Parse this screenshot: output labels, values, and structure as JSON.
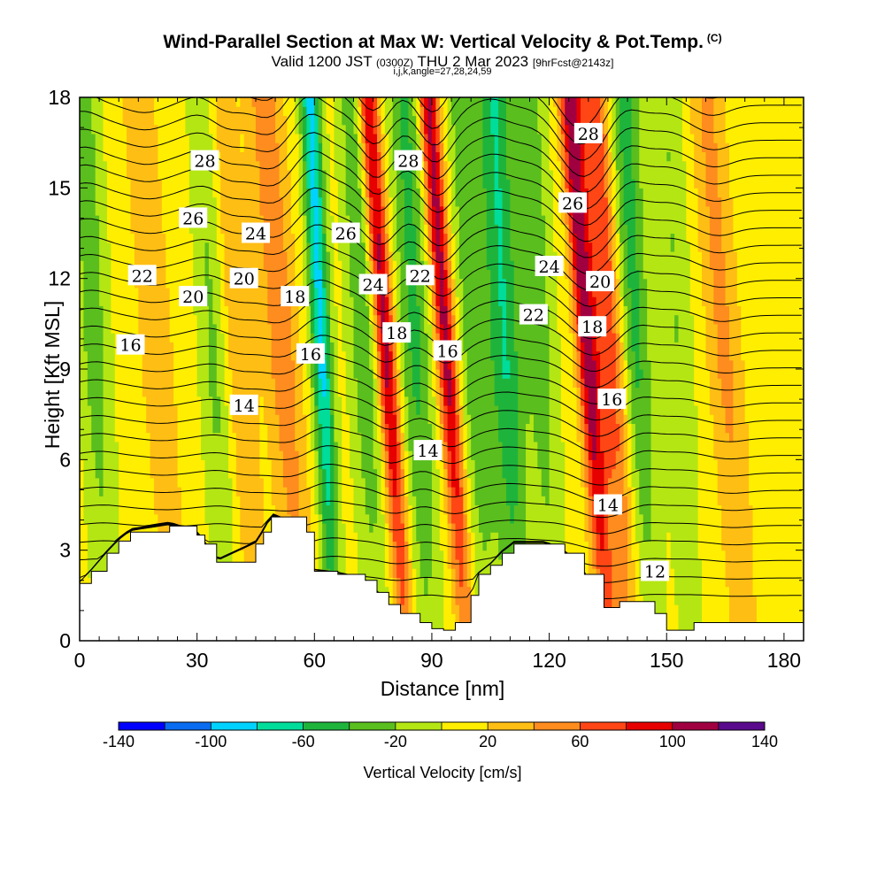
{
  "header": {
    "title": "Wind-Parallel Section at Max W: Vertical Velocity & Pot.Temp.",
    "title_tag": "(C)",
    "subtitle_main": "Valid 1200 JST",
    "subtitle_utc": "(0300Z)",
    "subtitle_date": "THU 2 Mar 2023",
    "subtitle_fcst": "[9hrFcst@2143z]",
    "subtitle2": "i,j,k,angle=27,28,24,59"
  },
  "chart_data": {
    "type": "contour",
    "xlabel": "Distance [nm]",
    "ylabel": "Height [Kft MSL]",
    "xlim": [
      0,
      185
    ],
    "ylim": [
      0,
      18
    ],
    "x_ticks": [
      0,
      30,
      60,
      90,
      120,
      150,
      180
    ],
    "y_ticks": [
      0,
      3,
      6,
      9,
      12,
      15,
      18
    ],
    "fill_variable": "Vertical Velocity [cm/s]",
    "colorbar": {
      "label": "Vertical Velocity [cm/s]",
      "tick_labels": [
        "-140",
        "-100",
        "-60",
        "-20",
        "20",
        "60",
        "100",
        "140"
      ],
      "levels": [
        -140,
        -120,
        -100,
        -80,
        -60,
        -40,
        -20,
        0,
        20,
        40,
        60,
        80,
        100,
        120,
        140
      ],
      "colors": [
        "#0000ff",
        "#0a6cf0",
        "#00d2ff",
        "#00dc9a",
        "#1eb43c",
        "#5abe1e",
        "#b4e614",
        "#ffee00",
        "#ffbe14",
        "#ff8c1e",
        "#ff4614",
        "#e60000",
        "#a00040",
        "#5a0a8c"
      ]
    },
    "contour_variable": "Potential Temperature (C)",
    "contour_labels": [
      {
        "text": "28",
        "x": 32,
        "y": 15.9
      },
      {
        "text": "26",
        "x": 29,
        "y": 14.0
      },
      {
        "text": "24",
        "x": 45,
        "y": 13.5
      },
      {
        "text": "22",
        "x": 16,
        "y": 12.1
      },
      {
        "text": "20",
        "x": 29,
        "y": 11.4
      },
      {
        "text": "20",
        "x": 42,
        "y": 12.0
      },
      {
        "text": "18",
        "x": 55,
        "y": 11.4
      },
      {
        "text": "16",
        "x": 13,
        "y": 9.8
      },
      {
        "text": "14",
        "x": 42,
        "y": 7.8
      },
      {
        "text": "26",
        "x": 68,
        "y": 13.5
      },
      {
        "text": "24",
        "x": 75,
        "y": 11.8
      },
      {
        "text": "16",
        "x": 59,
        "y": 9.5
      },
      {
        "text": "28",
        "x": 84,
        "y": 15.9
      },
      {
        "text": "22",
        "x": 87,
        "y": 12.1
      },
      {
        "text": "18",
        "x": 81,
        "y": 10.2
      },
      {
        "text": "16",
        "x": 94,
        "y": 9.6
      },
      {
        "text": "14",
        "x": 89,
        "y": 6.3
      },
      {
        "text": "28",
        "x": 130,
        "y": 16.8
      },
      {
        "text": "26",
        "x": 126,
        "y": 14.5
      },
      {
        "text": "24",
        "x": 120,
        "y": 12.4
      },
      {
        "text": "22",
        "x": 116,
        "y": 10.8
      },
      {
        "text": "20",
        "x": 133,
        "y": 11.9
      },
      {
        "text": "18",
        "x": 131,
        "y": 10.4
      },
      {
        "text": "16",
        "x": 136,
        "y": 8.0
      },
      {
        "text": "14",
        "x": 135,
        "y": 4.5
      },
      {
        "text": "12",
        "x": 147,
        "y": 2.3
      }
    ],
    "w_features": [
      {
        "x": 78.5,
        "w": 105
      },
      {
        "x": 94,
        "w": 100
      },
      {
        "x": 130,
        "w": 100
      },
      {
        "x": 136,
        "w": 70
      },
      {
        "x": 52,
        "w": 45
      },
      {
        "x": 40,
        "w": 35
      },
      {
        "x": 165,
        "w": 35
      },
      {
        "x": 20,
        "w": 25
      },
      {
        "x": 62,
        "w": -95
      },
      {
        "x": 86,
        "w": -55
      },
      {
        "x": 109,
        "w": -70
      },
      {
        "x": 142,
        "w": -60
      },
      {
        "x": 73,
        "w": -45
      },
      {
        "x": 101,
        "w": -45
      },
      {
        "x": 118,
        "w": -40
      },
      {
        "x": 35,
        "w": -40
      },
      {
        "x": 4,
        "w": -40
      },
      {
        "x": 153,
        "w": -30
      }
    ],
    "terrain_kft": [
      [
        0,
        1.9
      ],
      [
        3,
        2.3
      ],
      [
        7,
        2.9
      ],
      [
        10,
        3.3
      ],
      [
        13,
        3.6
      ],
      [
        23,
        3.8
      ],
      [
        30,
        3.5
      ],
      [
        32,
        3.2
      ],
      [
        35,
        2.6
      ],
      [
        45,
        3.2
      ],
      [
        47,
        3.6
      ],
      [
        49,
        4.1
      ],
      [
        58,
        3.6
      ],
      [
        60,
        2.3
      ],
      [
        66,
        2.2
      ],
      [
        73,
        2.0
      ],
      [
        76,
        1.6
      ],
      [
        79,
        1.2
      ],
      [
        82,
        0.9
      ],
      [
        87,
        0.6
      ],
      [
        90,
        0.4
      ],
      [
        93,
        0.35
      ],
      [
        96,
        0.6
      ],
      [
        100,
        1.5
      ],
      [
        102,
        2.2
      ],
      [
        105,
        2.5
      ],
      [
        108,
        2.9
      ],
      [
        111,
        3.2
      ],
      [
        119,
        3.2
      ],
      [
        124,
        2.9
      ],
      [
        129,
        2.2
      ],
      [
        134,
        1.1
      ],
      [
        138,
        1.3
      ],
      [
        143,
        1.3
      ],
      [
        147,
        0.9
      ],
      [
        150,
        0.35
      ],
      [
        157,
        0.6
      ],
      [
        185,
        0.6
      ]
    ]
  }
}
